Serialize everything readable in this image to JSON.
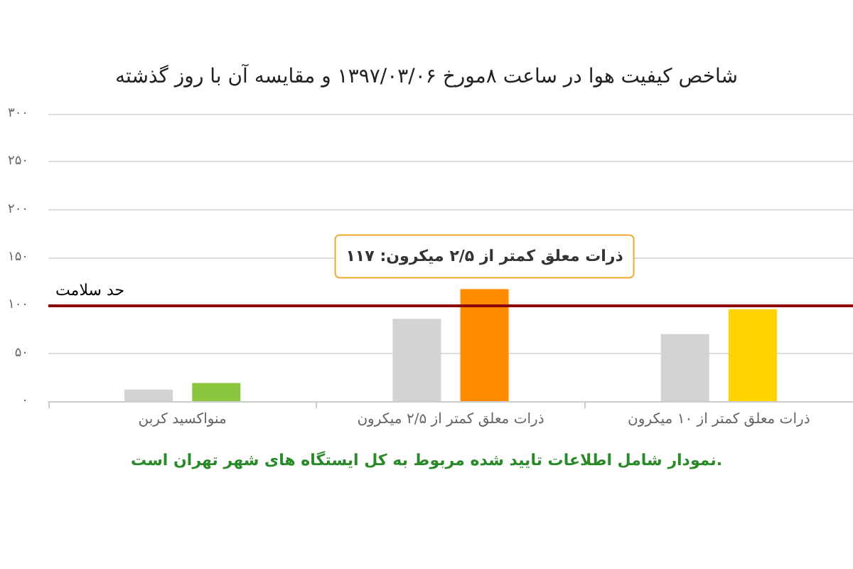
{
  "chart_data": {
    "type": "bar",
    "title": "شاخص کیفیت هوا در ساعت ۸مورخ ۱۳۹۷/۰۳/۰۶ و مقایسه آن با روز گذشته",
    "categories": [
      "منواکسید کربن",
      "ذرات معلق کمتر از ۲/۵ میکرون",
      "ذرات معلق کمتر از ۱۰ میکرون"
    ],
    "series": [
      {
        "color": "#d3d3d3",
        "values": [
          12,
          86,
          70
        ]
      },
      {
        "colors": [
          "#8cc63f",
          "#ff8c00",
          "#ffd200"
        ],
        "values": [
          19,
          117,
          96
        ]
      }
    ],
    "ylim": [
      0,
      300
    ],
    "yticks": [
      {
        "value": 0,
        "label": "۰"
      },
      {
        "value": 50,
        "label": "۵۰"
      },
      {
        "value": 100,
        "label": "۱۰۰"
      },
      {
        "value": 150,
        "label": "۱۵۰"
      },
      {
        "value": 200,
        "label": "۲۰۰"
      },
      {
        "value": 250,
        "label": "۲۵۰"
      },
      {
        "value": 300,
        "label": "۳۰۰"
      }
    ],
    "grid": "y",
    "ref_lines": [
      {
        "axis": "y",
        "value": 100,
        "label": "حد سلامت",
        "color": "#8b0000"
      }
    ],
    "annotations": [
      "ذرات معلق کمتر از ۲/۵ میکرون: ۱۱۷",
      "نمودار شامل اطلاعات تایید شده مربوط به کل ایستگاه های شهر تهران است."
    ]
  }
}
